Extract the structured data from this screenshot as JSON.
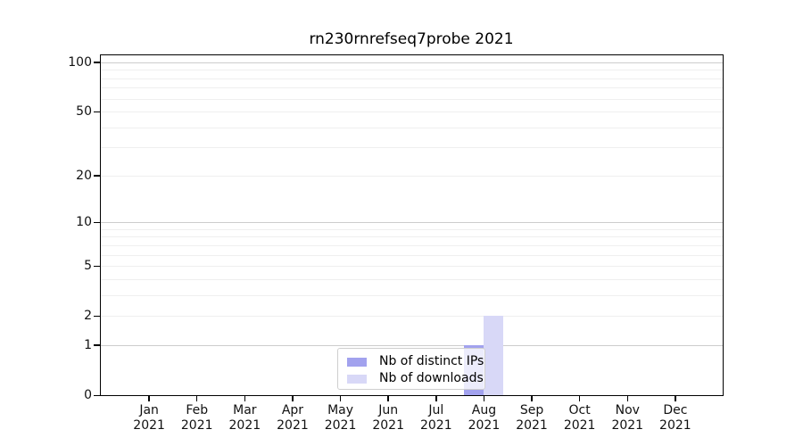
{
  "chart_data": {
    "type": "bar",
    "title": "rn230rnrefseq7probe 2021",
    "categories": [
      "Jan",
      "Feb",
      "Mar",
      "Apr",
      "May",
      "Jun",
      "Jul",
      "Aug",
      "Sep",
      "Oct",
      "Nov",
      "Dec"
    ],
    "year_label": "2021",
    "series": [
      {
        "name": "Nb of distinct IPs",
        "color": "#a2a2ee",
        "values": [
          0,
          0,
          0,
          0,
          0,
          0,
          0,
          1,
          0,
          0,
          0,
          0
        ]
      },
      {
        "name": "Nb of downloads",
        "color": "#d8d8f7",
        "values": [
          0,
          0,
          0,
          0,
          0,
          0,
          0,
          2,
          0,
          0,
          0,
          0
        ]
      }
    ],
    "xlabel": "",
    "ylabel": "",
    "yscale": "log10(value+1)",
    "ylim": [
      0,
      110
    ],
    "ytick_values": [
      0,
      1,
      2,
      5,
      10,
      20,
      50,
      100
    ],
    "ytick_labels": [
      "0",
      "1",
      "2",
      "5",
      "10",
      "20",
      "50",
      "100"
    ],
    "major_gridline_values": [
      1,
      10,
      100
    ],
    "minor_gridline_values": [
      2,
      3,
      4,
      5,
      6,
      7,
      8,
      9,
      20,
      30,
      40,
      50,
      60,
      70,
      80,
      90
    ],
    "grid": "horizontal",
    "legend_position": "inside lower-center"
  }
}
